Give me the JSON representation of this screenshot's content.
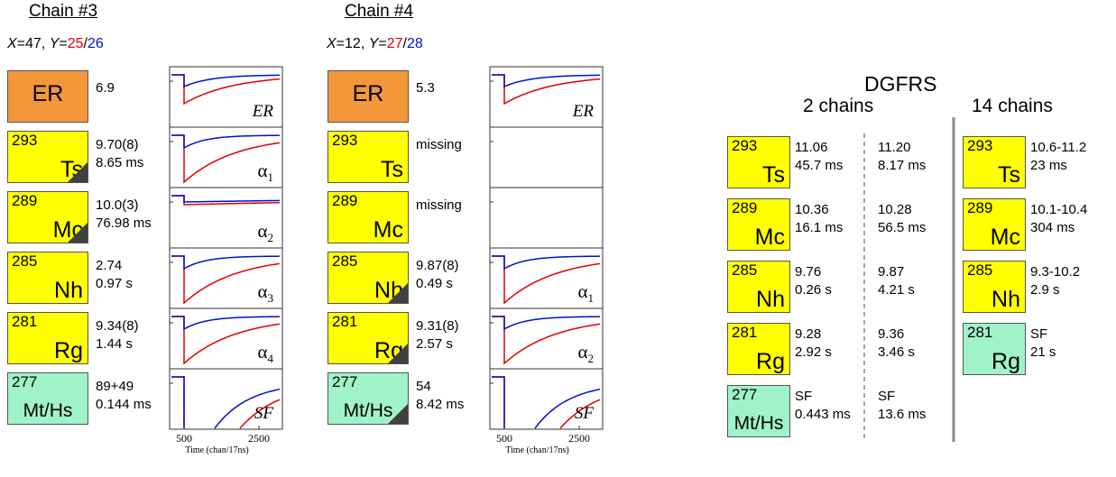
{
  "colors": {
    "er": "#f4973a",
    "alpha": "#ffff00",
    "sf": "#a0f2c8",
    "trace_red": "#e00000",
    "trace_blue": "#0010d0",
    "triangle": "#404040"
  },
  "chain3": {
    "title": "Chain #3",
    "xy": {
      "x_label": "X",
      "x_value": "=47, ",
      "y_label": "Y",
      "y_eq": "=",
      "y_red": "25",
      "slash": "/",
      "y_blue": "26"
    },
    "rows": [
      {
        "type": "er",
        "element": "ER",
        "value1": "6.9",
        "value2": "",
        "label": "ER"
      },
      {
        "type": "alpha",
        "mass": "293",
        "element": "Ts",
        "value1": "9.70(8)",
        "value2": "8.65 ms",
        "label": "α",
        "sub": "1",
        "triangle": true
      },
      {
        "type": "alpha",
        "mass": "289",
        "element": "Mc",
        "value1": "10.0(3)",
        "value2": "76.98 ms",
        "label": "α",
        "sub": "2",
        "triangle": true
      },
      {
        "type": "alpha",
        "mass": "285",
        "element": "Nh",
        "value1": "2.74",
        "value2": "0.97 s",
        "label": "α",
        "sub": "3",
        "triangle": false
      },
      {
        "type": "alpha",
        "mass": "281",
        "element": "Rg",
        "value1": "9.34(8)",
        "value2": "1.44 s",
        "label": "α",
        "sub": "4",
        "triangle": false
      },
      {
        "type": "sf",
        "mass": "277",
        "element": "Mt/Hs",
        "value1": "89+49",
        "value2": "0.144 ms",
        "label": "SF",
        "sub": "",
        "triangle": false
      }
    ],
    "axis": {
      "tick1": "500",
      "tick2": "2500",
      "xlabel": "Time (chan/17ns)"
    }
  },
  "chain4": {
    "title": "Chain #4",
    "xy": {
      "x_label": "X",
      "x_value": "=12, ",
      "y_label": "Y",
      "y_eq": "=",
      "y_red": "27",
      "slash": "/",
      "y_blue": "28"
    },
    "rows": [
      {
        "type": "er",
        "element": "ER",
        "value1": "5.3",
        "value2": "",
        "label": "ER"
      },
      {
        "type": "alpha",
        "mass": "293",
        "element": "Ts",
        "value1": "missing",
        "value2": "",
        "label": "",
        "sub": "",
        "triangle": false
      },
      {
        "type": "alpha",
        "mass": "289",
        "element": "Mc",
        "value1": "missing",
        "value2": "",
        "label": "",
        "sub": "",
        "triangle": false
      },
      {
        "type": "alpha",
        "mass": "285",
        "element": "Nh",
        "value1": "9.87(8)",
        "value2": "0.49 s",
        "label": "α",
        "sub": "1",
        "triangle": true
      },
      {
        "type": "alpha",
        "mass": "281",
        "element": "Rg",
        "value1": "9.31(8)",
        "value2": "2.57 s",
        "label": "α",
        "sub": "2",
        "triangle": true
      },
      {
        "type": "sf",
        "mass": "277",
        "element": "Mt/Hs",
        "value1": "54",
        "value2": "8.42 ms",
        "label": "SF",
        "sub": "",
        "triangle": true
      }
    ],
    "axis": {
      "tick1": "500",
      "tick2": "2500",
      "xlabel": "Time (chan/17ns)"
    }
  },
  "dgfrs": {
    "title": "DGFRS",
    "col_2_chains": "2 chains",
    "col_14_chains": "14 chains",
    "rows": [
      {
        "type": "alpha",
        "mass": "293",
        "element": "Ts",
        "c1a": "11.06",
        "c1b": "45.7 ms",
        "c2a": "11.20",
        "c2b": "8.17 ms",
        "c3a": "10.6-11.2",
        "c3b": "23 ms",
        "c3type": "alpha"
      },
      {
        "type": "alpha",
        "mass": "289",
        "element": "Mc",
        "c1a": "10.36",
        "c1b": "16.1 ms",
        "c2a": "10.28",
        "c2b": "56.5 ms",
        "c3a": "10.1-10.4",
        "c3b": "304 ms",
        "c3type": "alpha"
      },
      {
        "type": "alpha",
        "mass": "285",
        "element": "Nh",
        "c1a": "9.76",
        "c1b": "0.26 s",
        "c2a": "9.87",
        "c2b": "4.21 s",
        "c3a": "9.3-10.2",
        "c3b": "2.9 s",
        "c3type": "alpha"
      },
      {
        "type": "alpha",
        "mass": "281",
        "element": "Rg",
        "c1a": "9.28",
        "c1b": "2.92 s",
        "c2a": "9.36",
        "c2b": "3.46 s",
        "c3a": "SF",
        "c3b": "21 s",
        "c3type": "sf"
      },
      {
        "type": "sf",
        "mass": "277",
        "element": "Mt/Hs",
        "c1a": "SF",
        "c1b": "0.443 ms",
        "c2a": "SF",
        "c2b": "13.6 ms",
        "c3a": "",
        "c3b": "",
        "c3type": "none"
      }
    ]
  }
}
